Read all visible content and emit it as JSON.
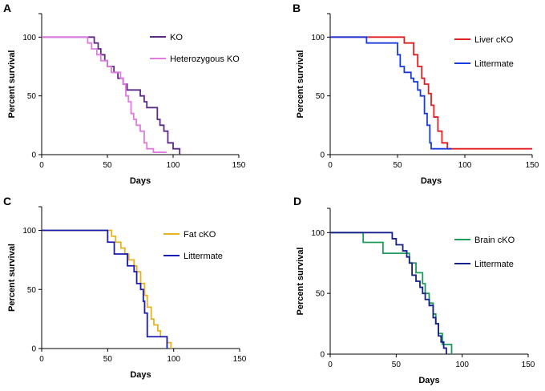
{
  "chart_data": [
    {
      "panel": "A",
      "type": "line",
      "xlabel": "Days",
      "ylabel": "Percent survival",
      "xlim": [
        0,
        150
      ],
      "ylim": [
        0,
        120
      ],
      "xticks": [
        0,
        50,
        100,
        150
      ],
      "yticks": [
        0,
        50,
        100
      ],
      "legend_position": "top-right",
      "series": [
        {
          "name": "KO",
          "color": "#5b2a86",
          "x": [
            0,
            38,
            40,
            43,
            45,
            48,
            50,
            53,
            55,
            58,
            62,
            65,
            70,
            75,
            78,
            80,
            85,
            88,
            90,
            93,
            96,
            100,
            105
          ],
          "y": [
            100,
            100,
            95,
            90,
            85,
            80,
            75,
            75,
            70,
            65,
            60,
            55,
            55,
            50,
            45,
            40,
            40,
            30,
            25,
            20,
            10,
            5,
            0
          ]
        },
        {
          "name": "Heterozygous KO",
          "color": "#e07be0",
          "x": [
            0,
            33,
            35,
            38,
            42,
            45,
            50,
            53,
            56,
            60,
            62,
            64,
            66,
            68,
            70,
            72,
            75,
            78,
            80,
            85,
            95
          ],
          "y": [
            100,
            100,
            95,
            90,
            85,
            80,
            75,
            70,
            70,
            65,
            60,
            50,
            45,
            35,
            30,
            25,
            20,
            10,
            5,
            2,
            2
          ]
        }
      ]
    },
    {
      "panel": "B",
      "type": "line",
      "xlabel": "Days",
      "ylabel": "Percent survival",
      "xlim": [
        0,
        150
      ],
      "ylim": [
        0,
        120
      ],
      "xticks": [
        0,
        50,
        100,
        150
      ],
      "yticks": [
        0,
        50,
        100
      ],
      "legend_position": "top-right",
      "series": [
        {
          "name": "Liver cKO",
          "color": "#e01f1f",
          "x": [
            0,
            50,
            55,
            62,
            65,
            68,
            70,
            73,
            75,
            77,
            80,
            83,
            87,
            150
          ],
          "y": [
            100,
            100,
            95,
            85,
            75,
            65,
            60,
            52,
            42,
            32,
            20,
            10,
            5,
            5
          ]
        },
        {
          "name": "Littermate",
          "color": "#1a3be0",
          "x": [
            0,
            27,
            47,
            50,
            52,
            55,
            60,
            62,
            65,
            67,
            70,
            72,
            74,
            75,
            90
          ],
          "y": [
            100,
            95,
            95,
            85,
            75,
            70,
            65,
            62,
            55,
            50,
            35,
            25,
            10,
            5,
            5
          ]
        }
      ]
    },
    {
      "panel": "C",
      "type": "line",
      "xlabel": "Days",
      "ylabel": "Percent survival",
      "xlim": [
        0,
        150
      ],
      "ylim": [
        0,
        120
      ],
      "xticks": [
        0,
        50,
        100,
        150
      ],
      "yticks": [
        0,
        50,
        100
      ],
      "legend_position": "top-right",
      "series": [
        {
          "name": "Fat cKO",
          "color": "#e6b31e",
          "x": [
            0,
            50,
            53,
            56,
            60,
            63,
            66,
            70,
            72,
            75,
            78,
            80,
            83,
            85,
            88,
            90,
            95,
            98
          ],
          "y": [
            100,
            100,
            95,
            90,
            85,
            80,
            75,
            70,
            65,
            55,
            45,
            35,
            25,
            20,
            15,
            10,
            5,
            0
          ]
        },
        {
          "name": "Littermate",
          "color": "#1a1ab4",
          "x": [
            0,
            47,
            50,
            55,
            60,
            65,
            70,
            72,
            75,
            77,
            78,
            80,
            95
          ],
          "y": [
            100,
            100,
            90,
            80,
            80,
            70,
            65,
            55,
            50,
            40,
            30,
            10,
            0
          ]
        }
      ]
    },
    {
      "panel": "D",
      "type": "line",
      "xlabel": "Days",
      "ylabel": "Percent survival",
      "xlim": [
        0,
        150
      ],
      "ylim": [
        0,
        120
      ],
      "xticks": [
        0,
        50,
        100,
        150
      ],
      "yticks": [
        0,
        50,
        100
      ],
      "legend_position": "top-right",
      "series": [
        {
          "name": "Brain cKO",
          "color": "#1e9a5a",
          "x": [
            0,
            25,
            40,
            58,
            60,
            65,
            70,
            72,
            75,
            78,
            80,
            82,
            85,
            92
          ],
          "y": [
            100,
            92,
            83,
            83,
            75,
            67,
            58,
            50,
            42,
            33,
            25,
            17,
            8,
            0
          ]
        },
        {
          "name": "Littermate",
          "color": "#16208a",
          "x": [
            0,
            47,
            50,
            55,
            58,
            60,
            62,
            65,
            68,
            70,
            72,
            75,
            78,
            80,
            82,
            84,
            86,
            88
          ],
          "y": [
            100,
            95,
            90,
            85,
            80,
            75,
            65,
            60,
            55,
            50,
            45,
            40,
            30,
            25,
            15,
            10,
            5,
            0
          ]
        }
      ]
    }
  ]
}
